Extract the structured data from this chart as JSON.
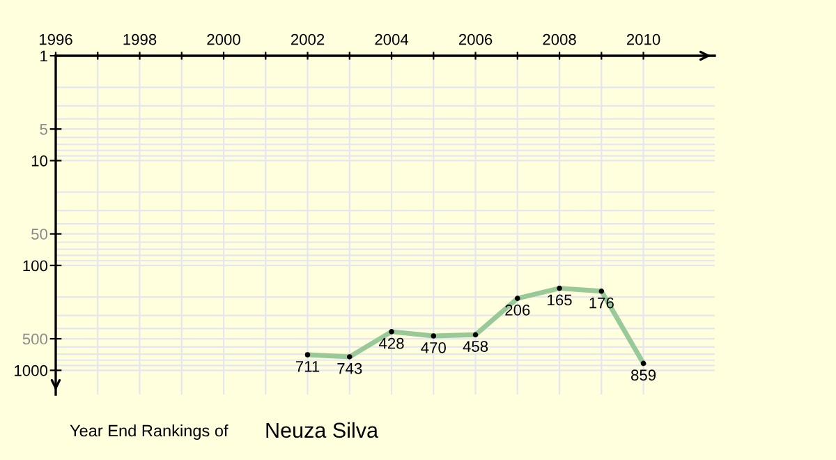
{
  "chart_data": {
    "type": "line",
    "title": "Year End Rankings of",
    "subtitle": "Neuza Silva",
    "x": [
      2002,
      2003,
      2004,
      2005,
      2006,
      2007,
      2008,
      2009,
      2010
    ],
    "series": [
      {
        "color": "#99c999",
        "values": [
          711,
          743,
          428,
          470,
          458,
          206,
          165,
          176,
          859
        ]
      }
    ],
    "data_labels": true,
    "marker": "circle",
    "line_style": "solid",
    "log": "y",
    "grid": true,
    "xlim": [
      1996,
      2011.7
    ],
    "xticks": [
      1996,
      {
        "value": 1997,
        "label": null
      },
      1998,
      {
        "value": 1999,
        "label": null
      },
      2000,
      {
        "value": 2001,
        "label": null
      },
      2002,
      {
        "value": 2003,
        "label": null
      },
      2004,
      {
        "value": 2005,
        "label": null
      },
      2006,
      {
        "value": 2007,
        "label": null
      },
      2008,
      {
        "value": 2009,
        "label": null
      },
      2010
    ],
    "ylim": [
      1700,
      1
    ],
    "yticks": [
      1,
      5,
      10,
      50,
      100,
      500,
      1000
    ]
  }
}
